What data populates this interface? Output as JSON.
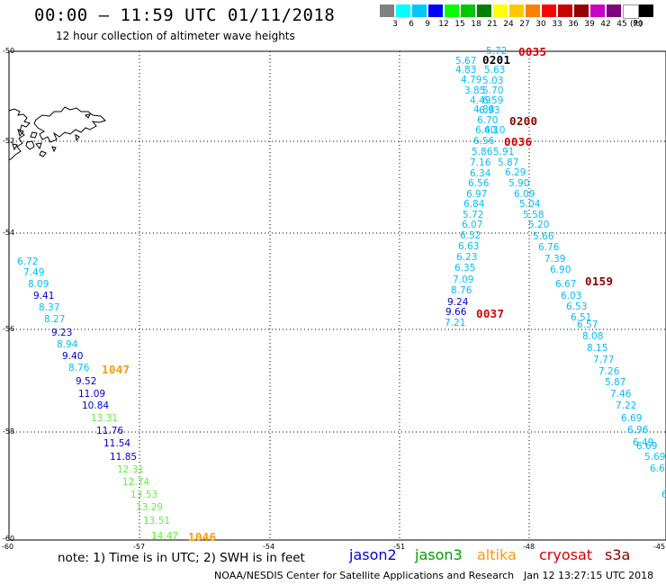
{
  "header": {
    "title": "00:00 – 11:59 UTC 01/11/2018",
    "subtitle": "12 hour collection of altimeter wave heights"
  },
  "colorbar": {
    "colors": [
      "#808080",
      "#00ffff",
      "#00c8ff",
      "#0000ff",
      "#00ff00",
      "#00c800",
      "#008000",
      "#ffff00",
      "#ffc800",
      "#ff8000",
      "#ff0000",
      "#c80000",
      "#960000",
      "#c800c8",
      "#800080",
      "#ffffff",
      "#000000"
    ],
    "labels": [
      "3",
      "6",
      "9",
      "12",
      "15",
      "18",
      "21",
      "24",
      "27",
      "30",
      "33",
      "36",
      "39",
      "42",
      "45",
      "70"
    ],
    "unit": "(ft)"
  },
  "axes": {
    "lat_labels": [
      "-50",
      "-52",
      "-54",
      "-56",
      "-58",
      "-60"
    ],
    "lon_labels": [
      "-60",
      "-57",
      "-54",
      "-51",
      "-48",
      "-45"
    ]
  },
  "passes": [
    {
      "time": "0035",
      "color": "#d40000"
    },
    {
      "time": "0201",
      "color": "#000000"
    },
    {
      "time": "0200",
      "color": "#8b0000"
    },
    {
      "time": "0036",
      "color": "#d40000"
    },
    {
      "time": "0159",
      "color": "#8b0000"
    },
    {
      "time": "0037",
      "color": "#d40000"
    },
    {
      "time": "1047",
      "color": "#ff9900"
    },
    {
      "time": "1046",
      "color": "#ff9900"
    }
  ],
  "tracks": [
    {
      "id": "west",
      "color_low": "#00bfff",
      "points": [
        {
          "v": "6.72",
          "c": "#00bfff"
        },
        {
          "v": "7.49",
          "c": "#00bfff"
        },
        {
          "v": "8.09",
          "c": "#00bfff"
        },
        {
          "v": "9.41",
          "c": "#0000cd"
        },
        {
          "v": "8.37",
          "c": "#00bfff"
        },
        {
          "v": "8.27",
          "c": "#00bfff"
        },
        {
          "v": "9.23",
          "c": "#0000cd"
        },
        {
          "v": "8.94",
          "c": "#00bfff"
        },
        {
          "v": "9.40",
          "c": "#0000cd"
        },
        {
          "v": "8.76",
          "c": "#00bfff"
        },
        {
          "v": "9.52",
          "c": "#0000cd"
        },
        {
          "v": "11.09",
          "c": "#0000cd"
        },
        {
          "v": "10.84",
          "c": "#0000cd"
        },
        {
          "v": "13.31",
          "c": "#66ee44"
        },
        {
          "v": "11.76",
          "c": "#0000cd"
        },
        {
          "v": "11.54",
          "c": "#0000cd"
        },
        {
          "v": "11.85",
          "c": "#0000cd"
        },
        {
          "v": "12.31",
          "c": "#66ee44"
        },
        {
          "v": "12.74",
          "c": "#66ee44"
        },
        {
          "v": "13.53",
          "c": "#66ee44"
        },
        {
          "v": "13.29",
          "c": "#66ee44"
        },
        {
          "v": "13.51",
          "c": "#66ee44"
        },
        {
          "v": "14.47",
          "c": "#66ee44"
        }
      ]
    },
    {
      "id": "east-a",
      "points": [
        {
          "v": "5.72",
          "c": "#00bfff"
        },
        {
          "v": "5.67",
          "c": "#00bfff"
        },
        {
          "v": "5.63",
          "c": "#00bfff"
        },
        {
          "v": "4.83",
          "c": "#00bfff"
        },
        {
          "v": "5.03",
          "c": "#00bfff"
        },
        {
          "v": "4.79",
          "c": "#00bfff"
        },
        {
          "v": "5.70",
          "c": "#00bfff"
        },
        {
          "v": "3.85",
          "c": "#00bfff"
        },
        {
          "v": "4.49",
          "c": "#00bfff"
        },
        {
          "v": "6.59",
          "c": "#00bfff"
        },
        {
          "v": "4.88",
          "c": "#00bfff"
        },
        {
          "v": "6.93",
          "c": "#00bfff"
        },
        {
          "v": "6.70",
          "c": "#00bfff"
        },
        {
          "v": "6.40",
          "c": "#00bfff"
        },
        {
          "v": "6.10",
          "c": "#00bfff"
        },
        {
          "v": "6.56",
          "c": "#00bfff"
        },
        {
          "v": "5.91",
          "c": "#00bfff"
        },
        {
          "v": "5.86",
          "c": "#00bfff"
        },
        {
          "v": "7.16",
          "c": "#00bfff"
        },
        {
          "v": "5.87",
          "c": "#00bfff"
        },
        {
          "v": "6.34",
          "c": "#00bfff"
        },
        {
          "v": "6.29",
          "c": "#00bfff"
        },
        {
          "v": "6.56",
          "c": "#00bfff"
        },
        {
          "v": "5.90",
          "c": "#00bfff"
        },
        {
          "v": "6.97",
          "c": "#00bfff"
        },
        {
          "v": "6.09",
          "c": "#00bfff"
        },
        {
          "v": "6.84",
          "c": "#00bfff"
        },
        {
          "v": "5.04",
          "c": "#00bfff"
        },
        {
          "v": "5.72",
          "c": "#00bfff"
        },
        {
          "v": "5.58",
          "c": "#00bfff"
        },
        {
          "v": "6.07",
          "c": "#00bfff"
        },
        {
          "v": "5.20",
          "c": "#00bfff"
        },
        {
          "v": "6.52",
          "c": "#00bfff"
        },
        {
          "v": "5.66",
          "c": "#00bfff"
        },
        {
          "v": "6.63",
          "c": "#00bfff"
        },
        {
          "v": "6.76",
          "c": "#00bfff"
        },
        {
          "v": "6.23",
          "c": "#00bfff"
        },
        {
          "v": "7.39",
          "c": "#00bfff"
        },
        {
          "v": "6.35",
          "c": "#00bfff"
        },
        {
          "v": "6.90",
          "c": "#00bfff"
        },
        {
          "v": "7.09",
          "c": "#00bfff"
        },
        {
          "v": "6.67",
          "c": "#00bfff"
        },
        {
          "v": "8.76",
          "c": "#00bfff"
        },
        {
          "v": "6.03",
          "c": "#00bfff"
        },
        {
          "v": "9.24",
          "c": "#0000cd"
        },
        {
          "v": "6.53",
          "c": "#00bfff"
        },
        {
          "v": "9.66",
          "c": "#0000cd"
        },
        {
          "v": "6.51",
          "c": "#00bfff"
        },
        {
          "v": "7.21",
          "c": "#00bfff"
        },
        {
          "v": "6.57",
          "c": "#00bfff"
        },
        {
          "v": "8.08",
          "c": "#00bfff"
        },
        {
          "v": "8.15",
          "c": "#00bfff"
        },
        {
          "v": "7.77",
          "c": "#00bfff"
        },
        {
          "v": "7.26",
          "c": "#00bfff"
        },
        {
          "v": "5.87",
          "c": "#00bfff"
        },
        {
          "v": "7.46",
          "c": "#00bfff"
        },
        {
          "v": "7.22",
          "c": "#00bfff"
        },
        {
          "v": "6.69",
          "c": "#00bfff"
        },
        {
          "v": "6.96",
          "c": "#00bfff"
        },
        {
          "v": "6.49",
          "c": "#00bfff"
        },
        {
          "v": "6.69",
          "c": "#00bfff"
        },
        {
          "v": "5.69",
          "c": "#00bfff"
        },
        {
          "v": "6.6",
          "c": "#00bfff"
        },
        {
          "v": "6",
          "c": "#00bfff"
        }
      ]
    }
  ],
  "footer": {
    "note": "note: 1) Time is in UTC; 2) SWH is in feet",
    "satellites": [
      {
        "name": "jason2",
        "color": "#0000dd"
      },
      {
        "name": "jason3",
        "color": "#00a000"
      },
      {
        "name": "altika",
        "color": "#ff9900"
      },
      {
        "name": "cryosat",
        "color": "#dd0000"
      },
      {
        "name": "s3a",
        "color": "#8b0000"
      }
    ],
    "credit": "NOAA/NESDIS Center for Satellite Applications and Research",
    "timestamp": "Jan 12 13:27:15 UTC 2018"
  }
}
